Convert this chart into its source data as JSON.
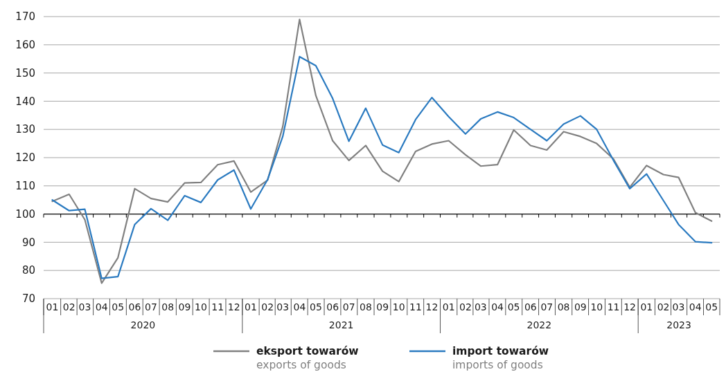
{
  "chart_data": {
    "type": "line",
    "x": [
      "2020-01",
      "2020-02",
      "2020-03",
      "2020-04",
      "2020-05",
      "2020-06",
      "2020-07",
      "2020-08",
      "2020-09",
      "2020-10",
      "2020-11",
      "2020-12",
      "2021-01",
      "2021-02",
      "2021-03",
      "2021-04",
      "2021-05",
      "2021-06",
      "2021-07",
      "2021-08",
      "2021-09",
      "2021-10",
      "2021-11",
      "2021-12",
      "2022-01",
      "2022-02",
      "2022-03",
      "2022-04",
      "2022-05",
      "2022-06",
      "2022-07",
      "2022-08",
      "2022-09",
      "2022-10",
      "2022-11",
      "2022-12",
      "2023-01",
      "2023-02",
      "2023-03",
      "2023-04",
      "2023-05"
    ],
    "series": [
      {
        "name": "eksport towarów\nexports of goods",
        "color": "#808080",
        "values": [
          104.5,
          107,
          98,
          75.5,
          84.5,
          109,
          105.5,
          104.3,
          111,
          111.2,
          117.5,
          118.8,
          107.8,
          112,
          131,
          169,
          142,
          126,
          119,
          124.3,
          115.2,
          111.5,
          122.2,
          124.8,
          126,
          121,
          117,
          117.5,
          129.8,
          124.3,
          122.7,
          129.2,
          127.5,
          125,
          119.5,
          109.5,
          117.2,
          114,
          113,
          100.5,
          97.5
        ]
      },
      {
        "name": "import towarów\nimports of goods",
        "color": "#2a7ac0",
        "values": [
          105,
          101.2,
          101.7,
          77.2,
          77.8,
          96.3,
          101.9,
          97.8,
          106.5,
          104.1,
          112.1,
          115.6,
          101.8,
          112.2,
          127.5,
          155.8,
          152.6,
          141,
          125.8,
          137.5,
          124.5,
          121.8,
          133.5,
          141.3,
          134.5,
          128.4,
          133.7,
          136.2,
          134.2,
          130,
          126,
          131.9,
          134.8,
          130,
          119,
          109,
          114.2,
          104.8,
          96.3,
          90.2,
          89.8
        ]
      }
    ],
    "xlim": [
      "2019-12-16",
      "2023-05-16"
    ],
    "xticks": [
      {
        "value": "2020-01",
        "label": "01"
      },
      {
        "value": "2020-02",
        "label": "02"
      },
      {
        "value": "2020-03",
        "label": "03"
      },
      {
        "value": "2020-04",
        "label": "04"
      },
      {
        "value": "2020-05",
        "label": "05"
      },
      {
        "value": "2020-06",
        "label": "06"
      },
      {
        "value": "2020-07",
        "label": "07"
      },
      {
        "value": "2020-08",
        "label": "08"
      },
      {
        "value": "2020-09",
        "label": "09"
      },
      {
        "value": "2020-10",
        "label": "10"
      },
      {
        "value": "2020-11",
        "label": "11"
      },
      {
        "value": "2020-12",
        "label": "12"
      },
      {
        "value": "2021-01",
        "label": "01"
      },
      {
        "value": "2021-02",
        "label": "02"
      },
      {
        "value": "2021-03",
        "label": "03"
      },
      {
        "value": "2021-04",
        "label": "04"
      },
      {
        "value": "2021-05",
        "label": "05"
      },
      {
        "value": "2021-06",
        "label": "06"
      },
      {
        "value": "2021-07",
        "label": "07"
      },
      {
        "value": "2021-08",
        "label": "08"
      },
      {
        "value": "2021-09",
        "label": "09"
      },
      {
        "value": "2021-10",
        "label": "10"
      },
      {
        "value": "2021-11",
        "label": "11"
      },
      {
        "value": "2021-12",
        "label": "12"
      },
      {
        "value": "2022-01",
        "label": "01"
      },
      {
        "value": "2022-02",
        "label": "02"
      },
      {
        "value": "2022-03",
        "label": "03"
      },
      {
        "value": "2022-04",
        "label": "04"
      },
      {
        "value": "2022-05",
        "label": "05"
      },
      {
        "value": "2022-06",
        "label": "06"
      },
      {
        "value": "2022-07",
        "label": "07"
      },
      {
        "value": "2022-08",
        "label": "08"
      },
      {
        "value": "2022-09",
        "label": "09"
      },
      {
        "value": "2022-10",
        "label": "10"
      },
      {
        "value": "2022-11",
        "label": "11"
      },
      {
        "value": "2022-12",
        "label": "12"
      },
      {
        "value": "2023-01",
        "label": "01"
      },
      {
        "value": "2023-02",
        "label": "02"
      },
      {
        "value": "2023-03",
        "label": "03"
      },
      {
        "value": "2023-04",
        "label": "04"
      },
      {
        "value": "2023-05",
        "label": "05"
      }
    ],
    "annotations": [
      "2020",
      "2021",
      "2022",
      "2023"
    ],
    "ylim": [
      70,
      170
    ],
    "yticks": [
      70,
      80,
      90,
      100,
      110,
      120,
      130,
      140,
      150,
      160,
      170
    ],
    "ref_lines": [
      {
        "axis": "y",
        "value": 100,
        "color": "#000000"
      }
    ],
    "grid": "y",
    "legend": "bottom",
    "marker": "none",
    "line_style": "solid"
  }
}
